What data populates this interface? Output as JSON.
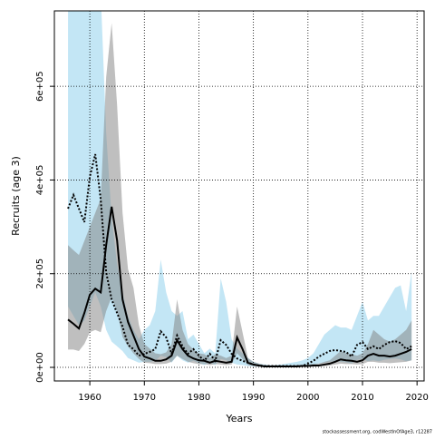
{
  "chart_data": {
    "type": "band-line",
    "x_label": "Years",
    "y_label": "Recruits (age 3)",
    "footnote": "stockassessment.org, codWestInOfAge3, r12287",
    "x": [
      1956,
      1957,
      1958,
      1959,
      1960,
      1961,
      1962,
      1963,
      1964,
      1965,
      1966,
      1967,
      1968,
      1969,
      1970,
      1971,
      1972,
      1973,
      1974,
      1975,
      1976,
      1977,
      1978,
      1979,
      1980,
      1981,
      1982,
      1983,
      1984,
      1985,
      1986,
      1987,
      1988,
      1989,
      1990,
      1991,
      1992,
      1993,
      1994,
      1995,
      1996,
      1997,
      1998,
      1999,
      2000,
      2001,
      2002,
      2003,
      2004,
      2005,
      2006,
      2007,
      2008,
      2009,
      2010,
      2011,
      2012,
      2013,
      2014,
      2015,
      2016,
      2017,
      2018,
      2019
    ],
    "series": [
      {
        "color": "#000000",
        "band_color": "#87ceeb",
        "line_style": "dotted",
        "values": [
          339000,
          368000,
          339000,
          310000,
          407000,
          455000,
          358000,
          203000,
          145000,
          116000,
          87000,
          48000,
          39000,
          25000,
          29000,
          33000,
          39000,
          77000,
          64000,
          29000,
          68000,
          45000,
          29000,
          39000,
          25000,
          14000,
          29000,
          14000,
          58000,
          48000,
          29000,
          19000,
          14000,
          10000,
          6000,
          4000,
          3000,
          3000,
          3000,
          3000,
          3000,
          3000,
          3000,
          3000,
          8000,
          14000,
          23000,
          29000,
          35000,
          37000,
          35000,
          33000,
          23000,
          48000,
          54000,
          39000,
          45000,
          39000,
          48000,
          54000,
          56000,
          52000,
          39000,
          45000
        ],
        "upper": [
          800000,
          800000,
          800000,
          800000,
          800000,
          800000,
          800000,
          500000,
          320000,
          220000,
          160000,
          110000,
          80000,
          60000,
          80000,
          90000,
          120000,
          230000,
          160000,
          120000,
          110000,
          120000,
          60000,
          70000,
          50000,
          30000,
          40000,
          30000,
          190000,
          140000,
          60000,
          40000,
          30000,
          20000,
          12000,
          8000,
          6000,
          5000,
          5000,
          6000,
          8000,
          10000,
          12000,
          15000,
          20000,
          30000,
          50000,
          70000,
          80000,
          90000,
          85000,
          85000,
          80000,
          110000,
          140000,
          100000,
          110000,
          110000,
          130000,
          150000,
          170000,
          175000,
          120000,
          205000
        ],
        "lower": [
          130000,
          110000,
          90000,
          100000,
          130000,
          160000,
          130000,
          80000,
          55000,
          45000,
          35000,
          20000,
          15000,
          10000,
          12000,
          12000,
          14000,
          25000,
          22000,
          10000,
          25000,
          15000,
          10000,
          14000,
          9000,
          5000,
          10000,
          5000,
          18000,
          15000,
          10000,
          6000,
          5000,
          3000,
          2000,
          1500,
          1000,
          1000,
          1000,
          1000,
          1000,
          1000,
          1000,
          1000,
          3000,
          5000,
          8000,
          10000,
          12000,
          13000,
          12000,
          11000,
          8000,
          16000,
          18000,
          13000,
          15000,
          13000,
          16000,
          18000,
          19000,
          17000,
          13000,
          15000
        ]
      },
      {
        "color": "#000000",
        "band_color": "#808080",
        "line_style": "solid",
        "values": [
          102000,
          93000,
          83000,
          116000,
          155000,
          168000,
          160000,
          261000,
          343000,
          271000,
          145000,
          97000,
          68000,
          39000,
          23000,
          19000,
          14000,
          14000,
          17000,
          25000,
          58000,
          39000,
          25000,
          19000,
          15000,
          14000,
          10000,
          14000,
          12000,
          10000,
          12000,
          64000,
          39000,
          10000,
          6000,
          4000,
          2000,
          2000,
          2000,
          2000,
          2000,
          2000,
          2000,
          3000,
          3000,
          4000,
          4000,
          6000,
          8000,
          12000,
          17000,
          15000,
          14000,
          12000,
          15000,
          25000,
          29000,
          25000,
          25000,
          23000,
          25000,
          29000,
          33000,
          39000
        ],
        "upper": [
          261000,
          250000,
          240000,
          270000,
          300000,
          330000,
          360000,
          620000,
          735000,
          560000,
          330000,
          210000,
          170000,
          90000,
          50000,
          40000,
          30000,
          28000,
          32000,
          50000,
          145000,
          80000,
          50000,
          38000,
          30000,
          28000,
          20000,
          28000,
          25000,
          20000,
          25000,
          130000,
          75000,
          20000,
          12000,
          8000,
          5000,
          4000,
          4000,
          4000,
          4000,
          4000,
          5000,
          6000,
          6000,
          8000,
          8000,
          12000,
          15000,
          25000,
          35000,
          30000,
          28000,
          25000,
          30000,
          50000,
          80000,
          70000,
          60000,
          55000,
          60000,
          70000,
          80000,
          100000
        ],
        "lower": [
          38000,
          38000,
          35000,
          50000,
          75000,
          80000,
          75000,
          120000,
          150000,
          120000,
          65000,
          45000,
          30000,
          18000,
          10000,
          9000,
          7000,
          7000,
          8000,
          12000,
          25000,
          18000,
          12000,
          9000,
          7000,
          7000,
          5000,
          7000,
          6000,
          5000,
          6000,
          30000,
          18000,
          5000,
          3000,
          2000,
          1000,
          1000,
          1000,
          1000,
          1000,
          1000,
          1000,
          1500,
          1500,
          2000,
          2000,
          3000,
          4000,
          6000,
          8000,
          7000,
          7000,
          6000,
          7000,
          12000,
          12000,
          10000,
          10000,
          9000,
          10000,
          11000,
          12000,
          15000
        ]
      }
    ],
    "xlim": [
      1953.5,
      2021.3
    ],
    "xticks": [
      1960,
      1970,
      1980,
      1990,
      2000,
      2010,
      2020
    ],
    "ylim": [
      -29000,
      761000
    ],
    "yticks": [
      {
        "value": 0,
        "label": "0e+00"
      },
      {
        "value": 200000,
        "label": "2e+05"
      },
      {
        "value": 400000,
        "label": "4e+05"
      },
      {
        "value": 600000,
        "label": "6e+05"
      }
    ],
    "grid": true
  }
}
